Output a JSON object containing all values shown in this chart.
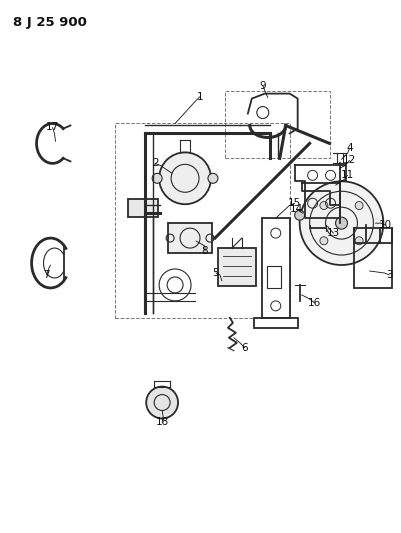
{
  "title": "8 J 25 900",
  "bg_color": "#ffffff",
  "line_color": "#2a2a2a",
  "label_color": "#111111",
  "fig_width": 4.01,
  "fig_height": 5.33,
  "dpi": 100,
  "title_fontsize": 9.5,
  "label_fontsize": 7.5
}
